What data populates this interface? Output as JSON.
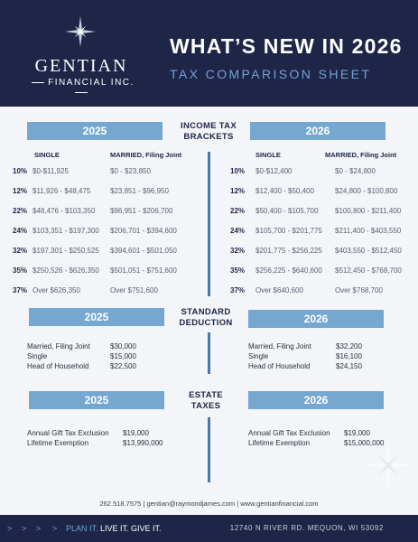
{
  "header": {
    "company_name": "GENTIAN",
    "company_sub": "FINANCIAL INC.",
    "title": "WHAT’S NEW IN 2026",
    "subtitle": "TAX COMPARISON SHEET"
  },
  "income_tax": {
    "title_line1": "INCOME TAX",
    "title_line2": "BRACKETS",
    "left_year": "2025",
    "right_year": "2026",
    "col_single": "SINGLE",
    "col_married": "MARRIED, Filing Joint",
    "rows_2025": [
      {
        "rate": "10%",
        "single": "$0-$11,925",
        "married": "$0 - $23,850"
      },
      {
        "rate": "12%",
        "single": "$11,926 - $48,475",
        "married": "$23,851 - $96,950"
      },
      {
        "rate": "22%",
        "single": "$48,476 - $103,350",
        "married": "$96,951 - $206,700"
      },
      {
        "rate": "24%",
        "single": "$103,351 - $197,300",
        "married": "$206,701 - $394,600"
      },
      {
        "rate": "32%",
        "single": "$197,301 - $250,525",
        "married": "$394,601 - $501,050"
      },
      {
        "rate": "35%",
        "single": "$250,526 - $626,350",
        "married": "$501,051 - $751,600"
      },
      {
        "rate": "37%",
        "single": "Over $626,350",
        "married": "Over $751,600"
      }
    ],
    "rows_2026": [
      {
        "rate": "10%",
        "single": "$0-$12,400",
        "married": "$0 - $24,800"
      },
      {
        "rate": "12%",
        "single": "$12,400 - $50,400",
        "married": "$24,800 - $100,800"
      },
      {
        "rate": "22%",
        "single": "$50,400 - $105,700",
        "married": "$100,800 - $211,400"
      },
      {
        "rate": "24%",
        "single": "$105,700 - $201,775",
        "married": "$211,400 - $403,550"
      },
      {
        "rate": "32%",
        "single": "$201,775 - $256,225",
        "married": "$403,550 - $512,450"
      },
      {
        "rate": "35%",
        "single": "$256,225 - $640,600",
        "married": "$512,450 - $768,700"
      },
      {
        "rate": "37%",
        "single": "Over $640,600",
        "married": "Over $768,700"
      }
    ]
  },
  "standard_deduction": {
    "title_line1": "STANDARD",
    "title_line2": "DEDUCTION",
    "left_year": "2025",
    "right_year": "2026",
    "items_2025": [
      {
        "label": "Married, Filing Joint",
        "value": "$30,000"
      },
      {
        "label": "Single",
        "value": "$15,000"
      },
      {
        "label": "Head of Household",
        "value": "$22,500"
      }
    ],
    "items_2026": [
      {
        "label": "Married, Filing Joint",
        "value": "$32,200"
      },
      {
        "label": "Single",
        "value": "$16,100"
      },
      {
        "label": "Head of Household",
        "value": "$24,150"
      }
    ]
  },
  "estate_taxes": {
    "title_line1": "ESTATE",
    "title_line2": "TAXES",
    "left_year": "2025",
    "right_year": "2026",
    "items_2025": [
      {
        "label": "Annual Gift Tax Exclusion",
        "value": "$19,000"
      },
      {
        "label": "Lifetime Exemption",
        "value": "$13,990,000"
      }
    ],
    "items_2026": [
      {
        "label": "Annual Gift Tax Exclusion",
        "value": "$19,000"
      },
      {
        "label": "Lifetime Exemption",
        "value": "$15,000,000"
      }
    ]
  },
  "contact": {
    "line": "262.518.7575  |  gentian@raymondjames.com  |  www.gentianfinancial.com"
  },
  "footer": {
    "chevron": ">",
    "tagline_accent": "PLAN IT.",
    "tagline_rest": " LIVE IT. GIVE IT.",
    "address": "12740 N RIVER RD. MEQUON, WI 53092"
  },
  "colors": {
    "navy": "#1e2547",
    "accent_blue": "#76a7d0",
    "light_blue": "#6fa3d6"
  }
}
